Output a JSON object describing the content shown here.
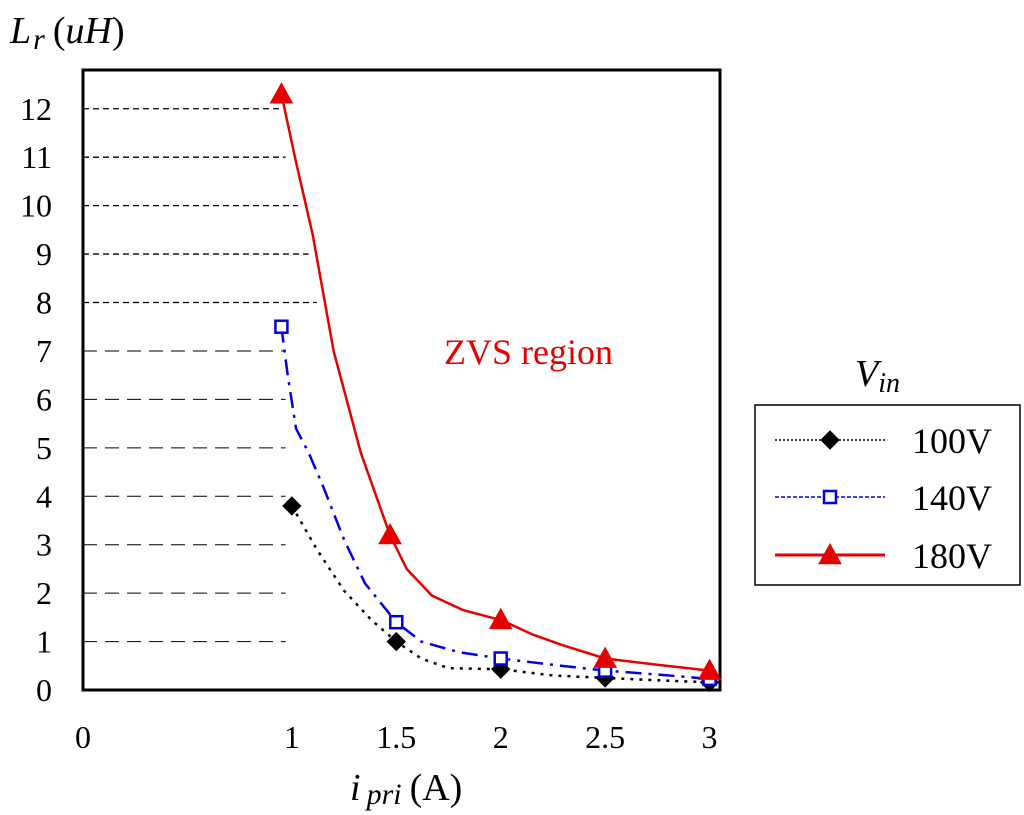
{
  "chart_data": {
    "type": "line",
    "title": "",
    "xlabel": {
      "symbol": "i",
      "subscript": "pri",
      "unit": "(A)"
    },
    "ylabel": {
      "symbol": "L",
      "subscript": "r",
      "unit_open": "(",
      "unit": "uH",
      "unit_close": ")"
    },
    "xlim": [
      0,
      3.05
    ],
    "ylim": [
      0,
      12.8
    ],
    "x_ticks": [
      "0",
      "1",
      "1.5",
      "2",
      "2.5",
      "3"
    ],
    "y_ticks": [
      "0",
      "1",
      "2",
      "3",
      "4",
      "5",
      "6",
      "7",
      "8",
      "9",
      "10",
      "11",
      "12"
    ],
    "grid": false,
    "legend": {
      "title_symbol": "V",
      "title_subscript": "in",
      "position": "right"
    },
    "annotations": [
      {
        "text": "ZVS region",
        "color": "#e60000"
      }
    ],
    "guide_lines": [
      {
        "y": 1,
        "x_end": 0.97
      },
      {
        "y": 2,
        "x_end": 0.97
      },
      {
        "y": 3,
        "x_end": 0.97
      },
      {
        "y": 4,
        "x_end": 0.97
      },
      {
        "y": 5,
        "x_end": 0.97
      },
      {
        "y": 6,
        "x_end": 0.97
      },
      {
        "y": 7,
        "x_end": 0.97
      },
      {
        "y": 8,
        "x_end": 1.12
      },
      {
        "y": 9,
        "x_end": 1.08
      },
      {
        "y": 10,
        "x_end": 1.03
      },
      {
        "y": 11,
        "x_end": 0.97
      },
      {
        "y": 12,
        "x_end": 0.95
      }
    ],
    "series": [
      {
        "name": "100V",
        "color": "#000000",
        "marker": "diamond",
        "line_style": "dotted",
        "points": [
          [
            1.0,
            3.8
          ],
          [
            1.5,
            1.0
          ],
          [
            2.0,
            0.43
          ],
          [
            2.5,
            0.25
          ],
          [
            3.0,
            0.16
          ]
        ],
        "curve": [
          [
            1.0,
            3.8
          ],
          [
            1.12,
            2.9
          ],
          [
            1.25,
            2.05
          ],
          [
            1.38,
            1.45
          ],
          [
            1.5,
            1.0
          ],
          [
            1.62,
            0.65
          ],
          [
            1.75,
            0.45
          ],
          [
            2.0,
            0.43
          ],
          [
            2.25,
            0.3
          ],
          [
            2.5,
            0.25
          ],
          [
            2.75,
            0.2
          ],
          [
            3.0,
            0.16
          ]
        ]
      },
      {
        "name": "140V",
        "color": "#0000e6",
        "marker": "square",
        "line_style": "dashdot",
        "points": [
          [
            0.95,
            7.5
          ],
          [
            1.5,
            1.4
          ],
          [
            2.0,
            0.65
          ],
          [
            2.5,
            0.4
          ],
          [
            3.0,
            0.23
          ]
        ],
        "curve": [
          [
            0.95,
            7.5
          ],
          [
            0.98,
            6.5
          ],
          [
            1.02,
            5.4
          ],
          [
            1.08,
            4.9
          ],
          [
            1.15,
            4.2
          ],
          [
            1.25,
            3.1
          ],
          [
            1.35,
            2.2
          ],
          [
            1.5,
            1.4
          ],
          [
            1.62,
            1.0
          ],
          [
            1.8,
            0.78
          ],
          [
            2.0,
            0.65
          ],
          [
            2.25,
            0.52
          ],
          [
            2.5,
            0.4
          ],
          [
            2.75,
            0.32
          ],
          [
            3.0,
            0.23
          ]
        ]
      },
      {
        "name": "180V",
        "color": "#e60000",
        "marker": "triangle",
        "line_style": "solid",
        "points": [
          [
            0.95,
            12.3
          ],
          [
            1.47,
            3.2
          ],
          [
            2.0,
            1.45
          ],
          [
            2.5,
            0.65
          ],
          [
            3.0,
            0.4
          ]
        ],
        "curve": [
          [
            0.95,
            12.3
          ],
          [
            1.02,
            10.9
          ],
          [
            1.1,
            9.4
          ],
          [
            1.2,
            7.0
          ],
          [
            1.33,
            4.9
          ],
          [
            1.47,
            3.2
          ],
          [
            1.55,
            2.5
          ],
          [
            1.67,
            1.95
          ],
          [
            1.82,
            1.65
          ],
          [
            1.95,
            1.5
          ],
          [
            2.0,
            1.45
          ],
          [
            2.15,
            1.15
          ],
          [
            2.3,
            0.92
          ],
          [
            2.5,
            0.65
          ],
          [
            2.75,
            0.52
          ],
          [
            3.0,
            0.4
          ]
        ]
      }
    ]
  }
}
